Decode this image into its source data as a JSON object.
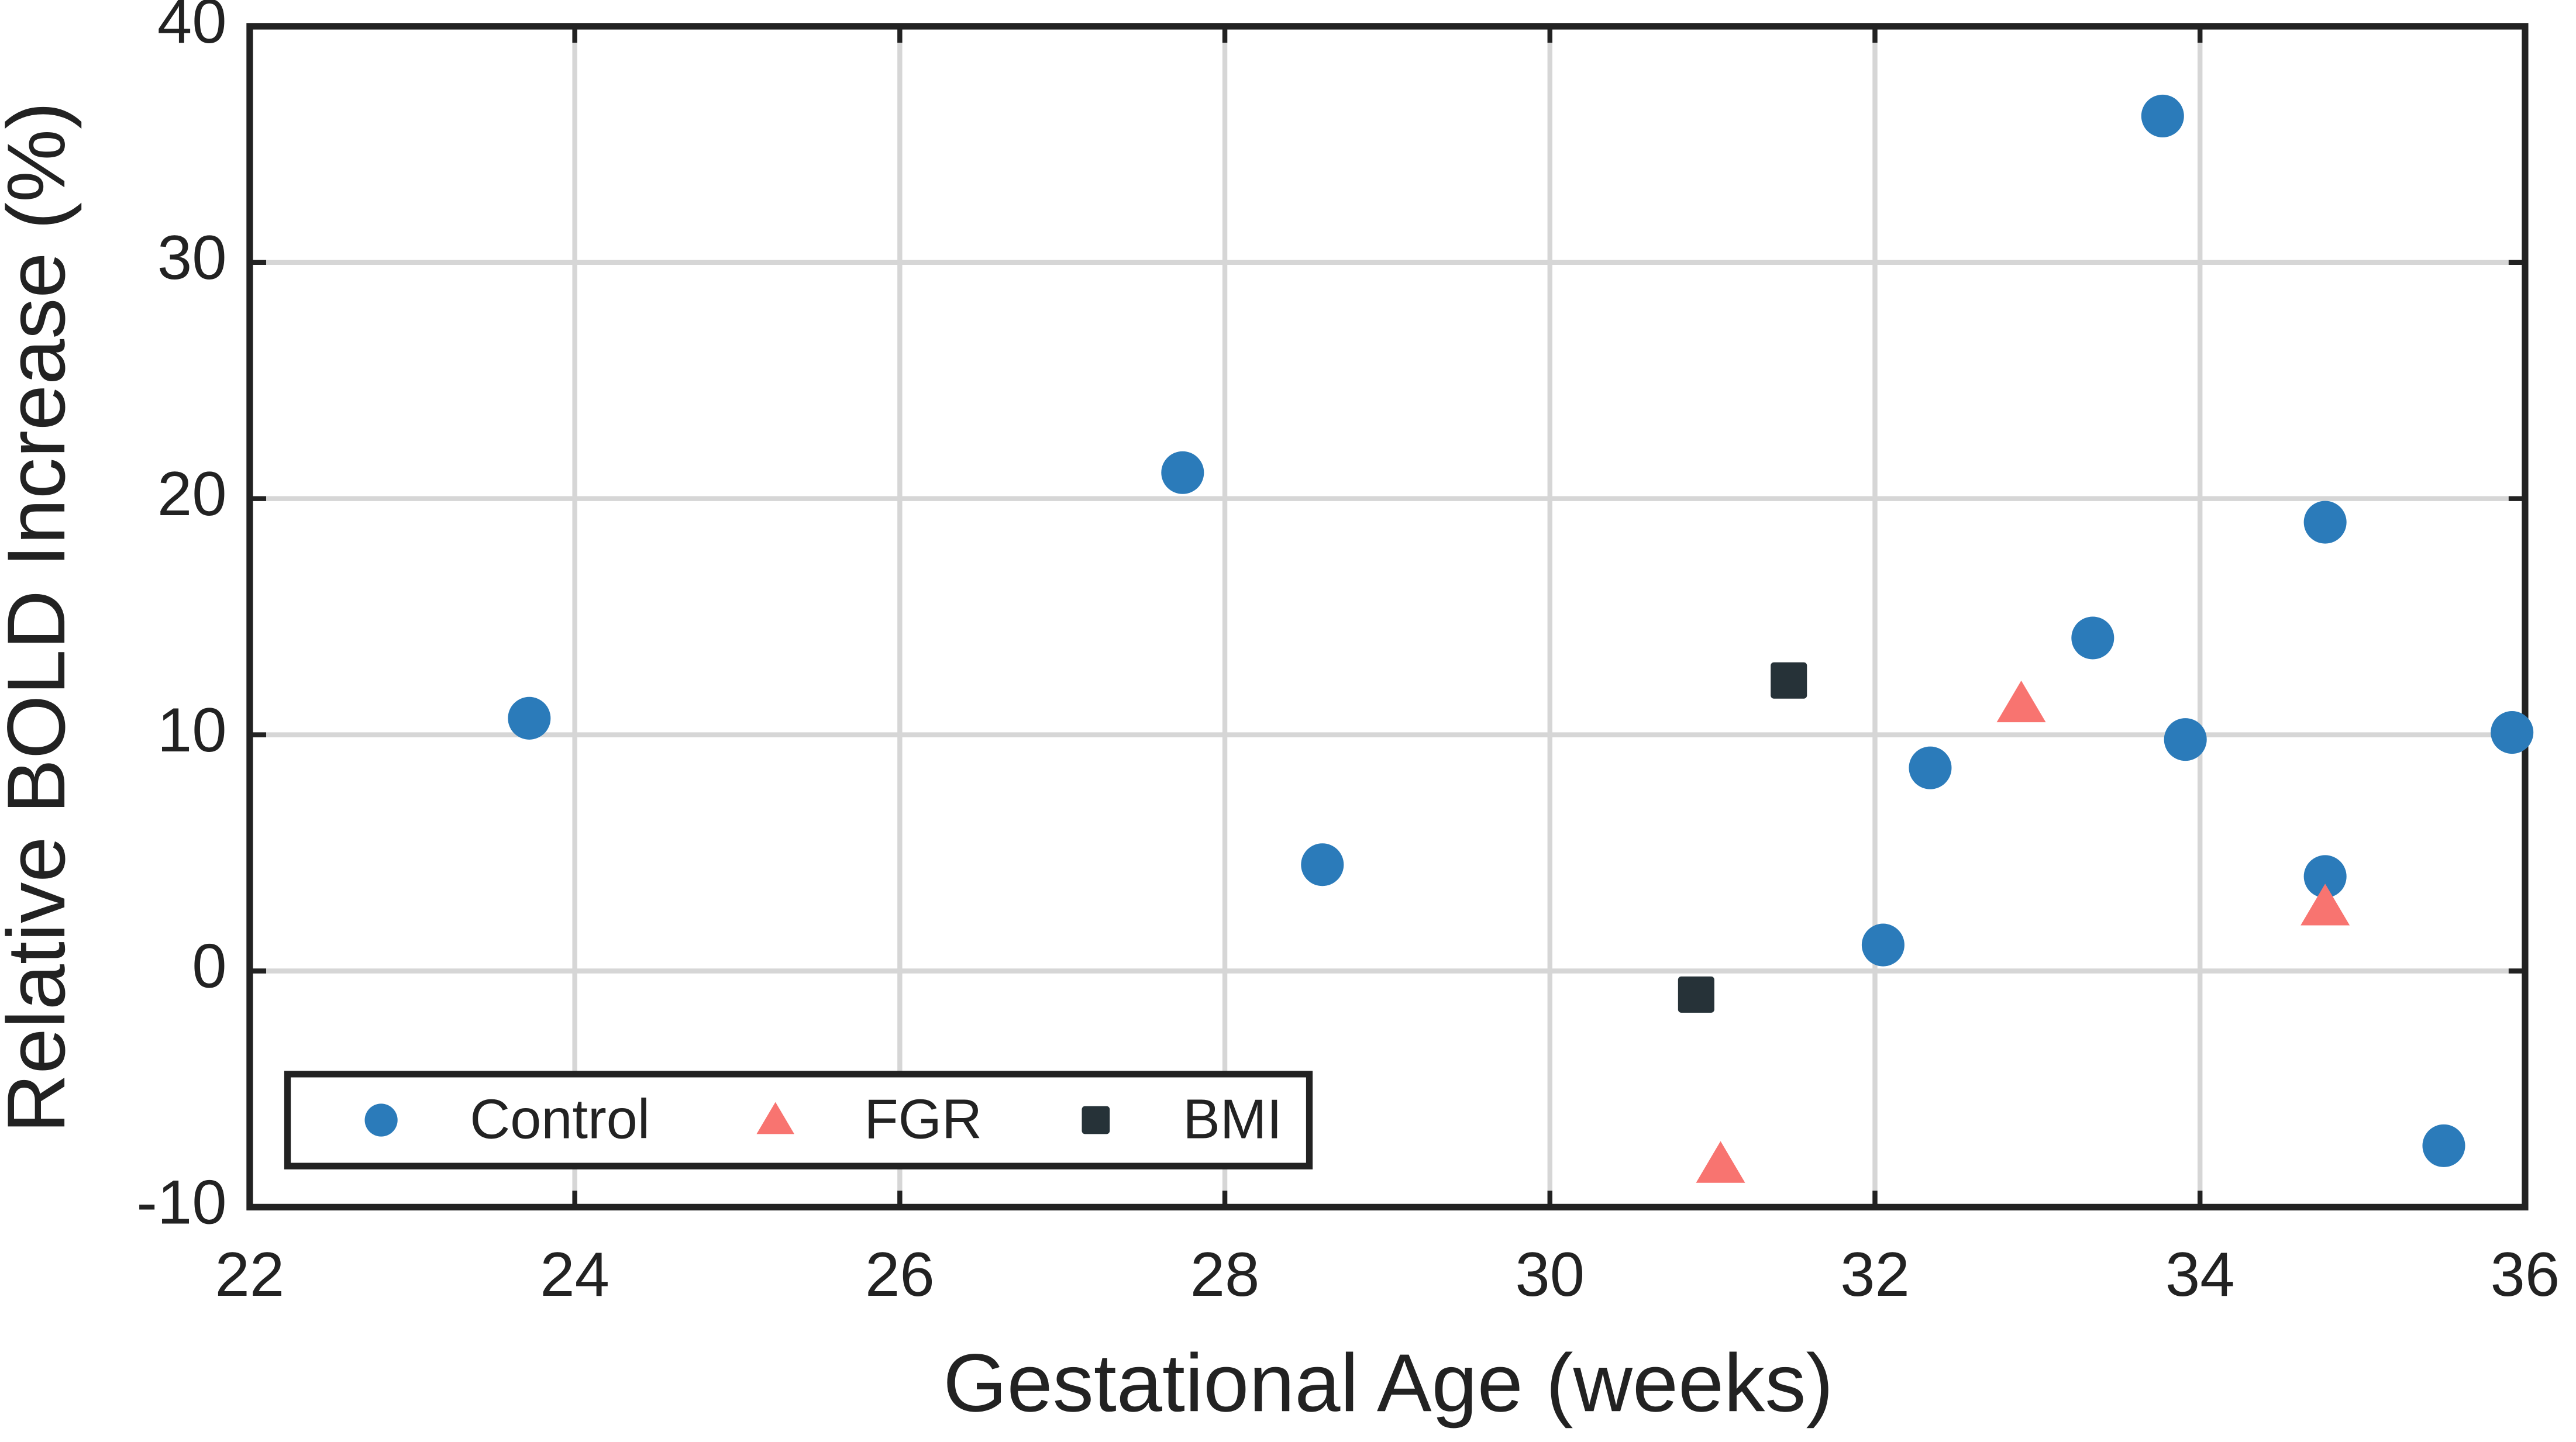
{
  "chart_data": {
    "type": "scatter",
    "x_label": "Gestational Age (weeks)",
    "y_label": "Relative BOLD Increase (%)",
    "xlim": [
      22,
      36
    ],
    "xticks": [
      22,
      24,
      26,
      28,
      30,
      32,
      34,
      36
    ],
    "ylim": [
      -10,
      40
    ],
    "yticks": [
      -10,
      0,
      10,
      20,
      30,
      40
    ],
    "grid": true,
    "legend": "lower left",
    "series": [
      {
        "name": "Control",
        "color": "#2b7bba",
        "marker": "circle",
        "x": [
          23.72,
          27.74,
          28.6,
          32.05,
          32.34,
          33.34,
          33.77,
          33.91,
          34.77,
          34.77,
          35.5,
          35.92
        ],
        "values": [
          10.7,
          21.1,
          4.5,
          1.1,
          8.6,
          14.1,
          36.2,
          9.8,
          19.0,
          4.0,
          -7.4,
          10.1
        ]
      },
      {
        "name": "FGR",
        "color": "#f87470",
        "marker": "triangle",
        "x": [
          31.05,
          32.9,
          34.77
        ],
        "values": [
          -8.2,
          11.3,
          2.7
        ]
      },
      {
        "name": "BMI",
        "color": "#263238",
        "marker": "square",
        "x": [
          30.9,
          31.47
        ],
        "values": [
          -1.0,
          12.3
        ]
      }
    ]
  }
}
